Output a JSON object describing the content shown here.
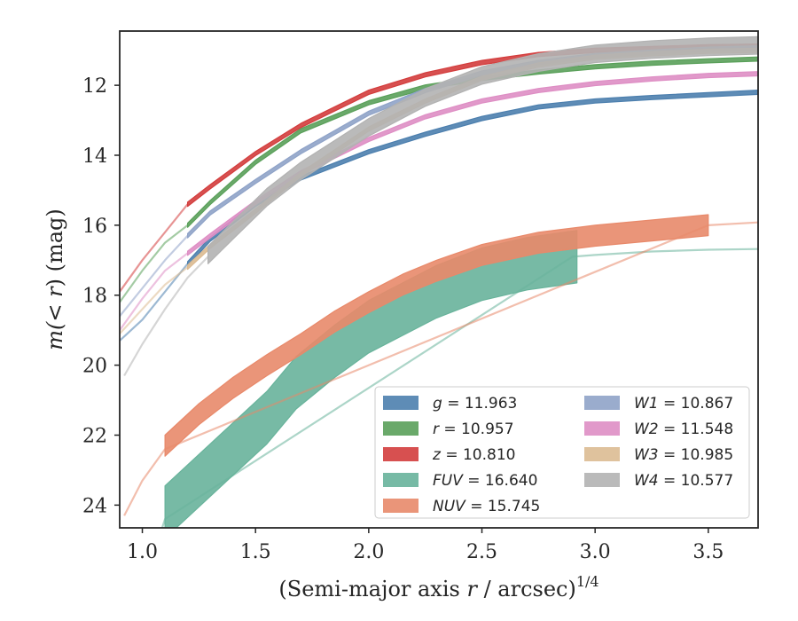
{
  "chart_data": {
    "type": "line",
    "xlabel_prefix": "(Semi-major axis ",
    "xlabel_var": "r",
    "xlabel_mid": " / arcsec)",
    "xlabel_sup": "1/4",
    "ylabel_prefix": "m(",
    "ylabel_var": "< r",
    "ylabel_suffix": ") (mag)",
    "xlim": [
      0.9,
      3.72
    ],
    "ylim": [
      24.65,
      10.45
    ],
    "y_inverted": true,
    "xticks": [
      1.0,
      1.5,
      2.0,
      2.5,
      3.0,
      3.5
    ],
    "xtick_labels": [
      "1.0",
      "1.5",
      "2.0",
      "2.5",
      "3.0",
      "3.5"
    ],
    "yticks": [
      12,
      14,
      16,
      18,
      20,
      22,
      24
    ],
    "ytick_labels": [
      "12",
      "14",
      "16",
      "18",
      "20",
      "22",
      "24"
    ],
    "grid": false,
    "legend_position": "lower-right",
    "series": [
      {
        "name": "g",
        "label": "g = 11.963",
        "color": "#4c7fae",
        "extrapolated": [
          [
            0.9,
            19.3
          ],
          [
            1.0,
            18.7
          ],
          [
            1.1,
            17.9
          ],
          [
            1.2,
            17.1
          ]
        ],
        "measured": [
          [
            1.2,
            17.1
          ],
          [
            1.3,
            16.4
          ],
          [
            1.5,
            15.4
          ],
          [
            1.7,
            14.65
          ],
          [
            2.0,
            13.9
          ],
          [
            2.25,
            13.4
          ],
          [
            2.5,
            12.95
          ],
          [
            2.75,
            12.62
          ],
          [
            3.0,
            12.45
          ],
          [
            3.25,
            12.35
          ],
          [
            3.5,
            12.27
          ],
          [
            3.72,
            12.2
          ]
        ],
        "band": 0.06
      },
      {
        "name": "r",
        "label": "r = 10.957",
        "color": "#5aa05a",
        "extrapolated": [
          [
            0.9,
            18.2
          ],
          [
            1.0,
            17.3
          ],
          [
            1.1,
            16.5
          ],
          [
            1.2,
            16.0
          ]
        ],
        "measured": [
          [
            1.2,
            16.0
          ],
          [
            1.3,
            15.35
          ],
          [
            1.5,
            14.2
          ],
          [
            1.7,
            13.3
          ],
          [
            2.0,
            12.5
          ],
          [
            2.25,
            12.05
          ],
          [
            2.5,
            11.8
          ],
          [
            2.75,
            11.62
          ],
          [
            3.0,
            11.47
          ],
          [
            3.25,
            11.37
          ],
          [
            3.5,
            11.3
          ],
          [
            3.72,
            11.25
          ]
        ],
        "band": 0.06
      },
      {
        "name": "z",
        "label": "z = 10.810",
        "color": "#d33d3d",
        "extrapolated": [
          [
            0.9,
            17.9
          ],
          [
            1.0,
            17.0
          ],
          [
            1.1,
            16.2
          ],
          [
            1.2,
            15.4
          ]
        ],
        "measured": [
          [
            1.2,
            15.4
          ],
          [
            1.3,
            14.9
          ],
          [
            1.5,
            13.95
          ],
          [
            1.7,
            13.15
          ],
          [
            2.0,
            12.2
          ],
          [
            2.25,
            11.7
          ],
          [
            2.5,
            11.35
          ],
          [
            2.75,
            11.12
          ],
          [
            3.0,
            11.0
          ],
          [
            3.25,
            10.95
          ],
          [
            3.5,
            10.9
          ],
          [
            3.72,
            10.88
          ]
        ],
        "band": 0.06
      },
      {
        "name": "FUV",
        "label": "FUV = 16.640",
        "color": "#68b39b",
        "extrapolated": [
          [
            1.05,
            25.4
          ],
          [
            1.1,
            24.4
          ],
          [
            2.9,
            16.9
          ],
          [
            3.0,
            16.85
          ],
          [
            3.25,
            16.75
          ],
          [
            3.5,
            16.7
          ],
          [
            3.72,
            16.68
          ]
        ],
        "measured": [
          [
            1.1,
            24.2
          ],
          [
            1.25,
            23.3
          ],
          [
            1.4,
            22.4
          ],
          [
            1.55,
            21.5
          ],
          [
            1.68,
            20.5
          ],
          [
            1.85,
            19.6
          ],
          [
            2.0,
            18.9
          ],
          [
            2.15,
            18.4
          ],
          [
            2.3,
            17.9
          ],
          [
            2.5,
            17.4
          ],
          [
            2.7,
            17.1
          ],
          [
            2.92,
            16.9
          ]
        ],
        "band": 0.75
      },
      {
        "name": "NUV",
        "label": "NUV = 15.745",
        "color": "#e8896a",
        "extrapolated": [
          [
            0.92,
            24.3
          ],
          [
            1.0,
            23.3
          ],
          [
            1.1,
            22.4
          ],
          [
            3.5,
            16.0
          ],
          [
            3.72,
            15.92
          ]
        ],
        "measured": [
          [
            1.1,
            22.3
          ],
          [
            1.25,
            21.4
          ],
          [
            1.4,
            20.65
          ],
          [
            1.55,
            20.0
          ],
          [
            1.7,
            19.4
          ],
          [
            1.85,
            18.75
          ],
          [
            2.0,
            18.2
          ],
          [
            2.15,
            17.7
          ],
          [
            2.3,
            17.3
          ],
          [
            2.5,
            16.85
          ],
          [
            2.75,
            16.5
          ],
          [
            3.0,
            16.3
          ],
          [
            3.25,
            16.15
          ],
          [
            3.5,
            16.0
          ]
        ],
        "band": 0.3
      },
      {
        "name": "W1",
        "label": "W1 = 10.867",
        "color": "#8fa3c8",
        "extrapolated": [
          [
            0.9,
            18.6
          ],
          [
            1.0,
            17.8
          ],
          [
            1.1,
            17.0
          ],
          [
            1.2,
            16.3
          ]
        ],
        "measured": [
          [
            1.2,
            16.3
          ],
          [
            1.3,
            15.65
          ],
          [
            1.5,
            14.75
          ],
          [
            1.7,
            13.9
          ],
          [
            2.0,
            12.8
          ],
          [
            2.25,
            12.15
          ],
          [
            2.5,
            11.65
          ],
          [
            2.75,
            11.35
          ],
          [
            3.0,
            11.15
          ],
          [
            3.25,
            11.05
          ],
          [
            3.5,
            10.97
          ],
          [
            3.72,
            10.93
          ]
        ],
        "band": 0.06
      },
      {
        "name": "W2",
        "label": "W2 = 11.548",
        "color": "#de8ec4",
        "extrapolated": [
          [
            0.9,
            19.0
          ],
          [
            1.0,
            18.1
          ],
          [
            1.1,
            17.3
          ],
          [
            1.2,
            16.8
          ]
        ],
        "measured": [
          [
            1.2,
            16.8
          ],
          [
            1.3,
            16.3
          ],
          [
            1.5,
            15.35
          ],
          [
            1.7,
            14.5
          ],
          [
            2.0,
            13.55
          ],
          [
            2.25,
            12.9
          ],
          [
            2.5,
            12.45
          ],
          [
            2.75,
            12.15
          ],
          [
            3.0,
            11.95
          ],
          [
            3.25,
            11.82
          ],
          [
            3.5,
            11.72
          ],
          [
            3.72,
            11.67
          ]
        ],
        "band": 0.06
      },
      {
        "name": "W3",
        "label": "W3 = 10.985",
        "color": "#dcbb92",
        "extrapolated": [
          [
            0.9,
            19.1
          ],
          [
            1.0,
            18.4
          ],
          [
            1.1,
            17.7
          ],
          [
            1.2,
            17.2
          ]
        ],
        "measured": [
          [
            1.2,
            17.2
          ],
          [
            1.3,
            16.6
          ],
          [
            1.5,
            15.6
          ],
          [
            1.7,
            14.55
          ],
          [
            2.0,
            13.25
          ],
          [
            2.25,
            12.45
          ],
          [
            2.5,
            11.8
          ],
          [
            2.75,
            11.42
          ],
          [
            3.0,
            11.2
          ],
          [
            3.25,
            11.1
          ],
          [
            3.5,
            11.03
          ],
          [
            3.72,
            11.0
          ]
        ],
        "band": 0.06
      },
      {
        "name": "W4",
        "label": "W4 = 10.577",
        "color": "#b2b2b2",
        "extrapolated": [
          [
            0.92,
            20.3
          ],
          [
            1.0,
            19.4
          ],
          [
            1.1,
            18.4
          ],
          [
            1.2,
            17.5
          ],
          [
            1.29,
            16.9
          ]
        ],
        "measured": [
          [
            1.29,
            16.85
          ],
          [
            1.4,
            16.15
          ],
          [
            1.55,
            15.2
          ],
          [
            1.7,
            14.45
          ],
          [
            2.0,
            13.2
          ],
          [
            2.25,
            12.35
          ],
          [
            2.5,
            11.72
          ],
          [
            2.75,
            11.35
          ],
          [
            3.0,
            11.1
          ],
          [
            3.25,
            10.98
          ],
          [
            3.5,
            10.9
          ],
          [
            3.72,
            10.86
          ]
        ],
        "band": 0.25
      }
    ]
  }
}
